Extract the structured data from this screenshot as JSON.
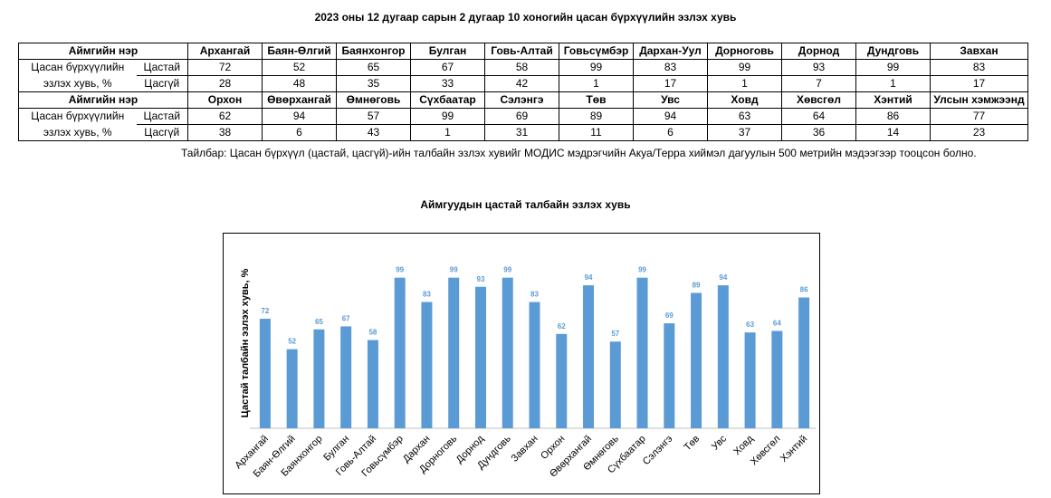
{
  "title": "2023 оны 12 дугаар сарын 2 дугаар 10 хоногийн цасан бүрхүүлийн эзлэх хувь",
  "table": {
    "header_label": "Аймгийн нэр",
    "row_label_line1": "Цасан бүрхүүлийн",
    "row_label_line2": "эзлэх хувь, %",
    "sub_snow": "Цастай",
    "sub_nosnow": "Цасгүй",
    "part1": {
      "names": [
        "Архангай",
        "Баян-Өлгий",
        "Баянхонгор",
        "Булган",
        "Говь-Алтай",
        "Говьсүмбэр",
        "Дархан-Уул",
        "Дорноговь",
        "Дорнод",
        "Дундговь",
        "Завхан"
      ],
      "snow": [
        "72",
        "52",
        "65",
        "67",
        "58",
        "99",
        "83",
        "99",
        "93",
        "99",
        "83"
      ],
      "nosnow": [
        "28",
        "48",
        "35",
        "33",
        "42",
        "1",
        "17",
        "1",
        "7",
        "1",
        "17"
      ]
    },
    "part2": {
      "names": [
        "Орхон",
        "Өвөрхангай",
        "Өмнөговь",
        "Сүхбаатар",
        "Сэлэнгэ",
        "Төв",
        "Увс",
        "Ховд",
        "Хөвсгөл",
        "Хэнтий",
        "Улсын хэмжээнд"
      ],
      "snow": [
        "62",
        "94",
        "57",
        "99",
        "69",
        "89",
        "94",
        "63",
        "64",
        "86",
        "77"
      ],
      "nosnow": [
        "38",
        "6",
        "43",
        "1",
        "31",
        "11",
        "6",
        "37",
        "36",
        "14",
        "23"
      ]
    }
  },
  "note": "Тайлбар: Цасан бүрхүүл (цастай, цасгүй)-ийн талбайн эзлэх хувийг МОДИС мэдрэгчийн Акуа/Терра хиймэл дагуулын 500 метрийн мэдээгээр тооцсон болно.",
  "chart_data": {
    "type": "bar",
    "title": "Аймгуудын цастай талбайн эзлэх хувь",
    "xlabel": "",
    "ylabel": "Цастай талбайн эзлэх хувь, %",
    "ylim": [
      0,
      100
    ],
    "grid": false,
    "bar_color": "#5b9bd5",
    "categories": [
      "Архангай",
      "Баян-Өлгий",
      "Баянхонгор",
      "Булган",
      "Говь-Алтай",
      "Говьсүмбэр",
      "Дархан",
      "Дорноговь",
      "Дорнод",
      "Дундговь",
      "Завхан",
      "Орхон",
      "Өвөрхангай",
      "Өмнөговь",
      "Сүхбаатар",
      "Сэлэнгэ",
      "Төв",
      "Увс",
      "Ховд",
      "Хөвсгөл",
      "Хэнтий"
    ],
    "values": [
      72,
      52,
      65,
      67,
      58,
      99,
      83,
      99,
      93,
      99,
      83,
      62,
      94,
      57,
      99,
      69,
      89,
      94,
      63,
      64,
      86
    ]
  }
}
